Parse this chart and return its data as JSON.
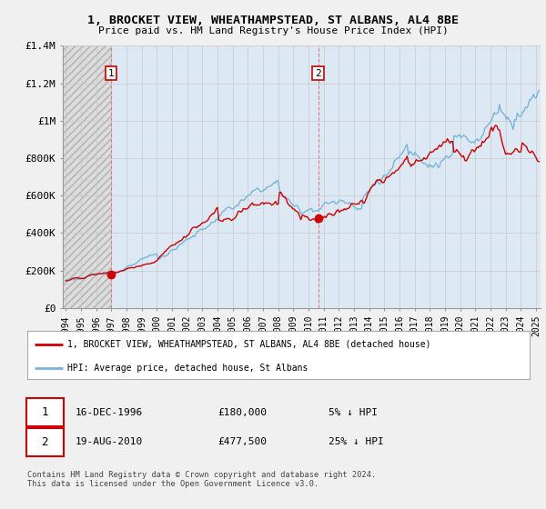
{
  "title": "1, BROCKET VIEW, WHEATHAMPSTEAD, ST ALBANS, AL4 8BE",
  "subtitle": "Price paid vs. HM Land Registry's House Price Index (HPI)",
  "ylim": [
    0,
    1400000
  ],
  "yticks": [
    0,
    200000,
    400000,
    600000,
    800000,
    1000000,
    1200000,
    1400000
  ],
  "ytick_labels": [
    "£0",
    "£200K",
    "£400K",
    "£600K",
    "£800K",
    "£1M",
    "£1.2M",
    "£1.4M"
  ],
  "background_color": "#f0f0f0",
  "plot_bg_color": "#ffffff",
  "hatch_bg_color": "#dcdcdc",
  "between_fill_color": "#dce9f5",
  "hpi_color": "#7ab4d8",
  "price_color": "#cc0000",
  "transaction1": {
    "date_num": 1996.96,
    "price": 180000,
    "label": "1"
  },
  "transaction2": {
    "date_num": 2010.63,
    "price": 477500,
    "label": "2"
  },
  "legend_line1": "1, BROCKET VIEW, WHEATHAMPSTEAD, ST ALBANS, AL4 8BE (detached house)",
  "legend_line2": "HPI: Average price, detached house, St Albans",
  "footnote3": "Contains HM Land Registry data © Crown copyright and database right 2024.\nThis data is licensed under the Open Government Licence v3.0.",
  "xlim": [
    1993.8,
    2025.3
  ],
  "xtick_years": [
    1994,
    1995,
    1996,
    1997,
    1998,
    1999,
    2000,
    2001,
    2002,
    2003,
    2004,
    2005,
    2006,
    2007,
    2008,
    2009,
    2010,
    2011,
    2012,
    2013,
    2014,
    2015,
    2016,
    2017,
    2018,
    2019,
    2020,
    2021,
    2022,
    2023,
    2024,
    2025
  ]
}
